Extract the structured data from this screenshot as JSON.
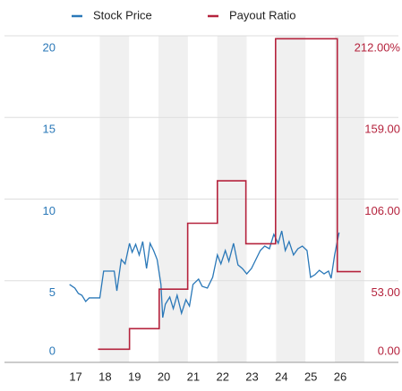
{
  "chart_data": {
    "type": "line",
    "xlim": [
      16.8,
      26.7
    ],
    "xticks": [
      17,
      18,
      19,
      20,
      21,
      22,
      23,
      24,
      25,
      26
    ],
    "ylim": [
      0,
      20
    ],
    "yticks": [
      0,
      5,
      10,
      15,
      20
    ],
    "y2lim": [
      -9,
      214
    ],
    "y2ticks": [
      {
        "value": 0,
        "label": "0.00"
      },
      {
        "value": 53,
        "label": "53.00"
      },
      {
        "value": 106,
        "label": "106.00"
      },
      {
        "value": 159,
        "label": "159.00"
      },
      {
        "value": 212,
        "label": "212.00%"
      }
    ],
    "grid": true,
    "legend": "top",
    "series": [
      {
        "name": "Stock Price",
        "color": "#2a78b8",
        "x": [
          16.79,
          16.97,
          17.09,
          17.21,
          17.34,
          17.46,
          17.82,
          17.95,
          18.31,
          18.4,
          18.55,
          18.68,
          18.83,
          18.92,
          19.04,
          19.16,
          19.28,
          19.41,
          19.53,
          19.65,
          19.77,
          19.9,
          19.96,
          20.05,
          20.2,
          20.32,
          20.45,
          20.6,
          20.75,
          20.87,
          20.99,
          21.18,
          21.3,
          21.48,
          21.66,
          21.82,
          21.94,
          22.09,
          22.21,
          22.37,
          22.52,
          22.67,
          22.82,
          22.98,
          23.13,
          23.28,
          23.43,
          23.59,
          23.74,
          23.89,
          24.01,
          24.13,
          24.26,
          24.41,
          24.56,
          24.71,
          24.87,
          24.99,
          25.14,
          25.29,
          25.45,
          25.6,
          25.69,
          25.81,
          25.96
        ],
        "values": [
          4.77,
          4.55,
          4.22,
          4.11,
          3.73,
          3.95,
          3.95,
          5.59,
          5.59,
          4.38,
          6.3,
          6.03,
          7.29,
          6.74,
          7.23,
          6.58,
          7.4,
          5.75,
          7.29,
          6.85,
          6.3,
          4.77,
          2.74,
          3.56,
          4.0,
          3.29,
          4.11,
          3.01,
          3.84,
          3.45,
          4.77,
          5.1,
          4.66,
          4.55,
          5.21,
          6.58,
          6.03,
          6.85,
          6.19,
          7.29,
          5.97,
          5.75,
          5.42,
          5.75,
          6.3,
          6.85,
          7.12,
          6.96,
          7.84,
          7.29,
          8.05,
          6.85,
          7.4,
          6.58,
          6.96,
          7.12,
          6.85,
          5.21,
          5.37,
          5.64,
          5.42,
          5.59,
          5.15,
          6.58,
          7.95
        ]
      },
      {
        "name": "Payout Ratio",
        "color": "#b5233d",
        "axis": "y2",
        "step": true,
        "x": [
          17.76,
          18.83,
          19.84,
          20.81,
          21.82,
          22.79,
          23.8,
          25.9,
          26.7
        ],
        "values": [
          0,
          14,
          41,
          86,
          115,
          72,
          212,
          53,
          53
        ]
      }
    ]
  }
}
